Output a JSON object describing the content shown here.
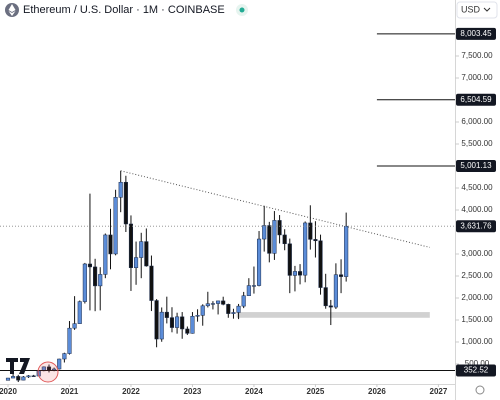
{
  "chart_data": {
    "type": "candlestick",
    "title": "Ethereum / U.S. Dollar · 1M · COINBASE",
    "currency": "USD",
    "x": [
      2020,
      2020.083,
      2020.167,
      2020.25,
      2020.333,
      2020.417,
      2020.5,
      2020.583,
      2020.667,
      2020.75,
      2020.833,
      2020.917,
      2021,
      2021.083,
      2021.167,
      2021.25,
      2021.333,
      2021.417,
      2021.5,
      2021.583,
      2021.667,
      2021.75,
      2021.833,
      2021.917,
      2022,
      2022.083,
      2022.167,
      2022.25,
      2022.333,
      2022.417,
      2022.5,
      2022.583,
      2022.667,
      2022.75,
      2022.833,
      2022.917,
      2023,
      2023.083,
      2023.167,
      2023.25,
      2023.333,
      2023.417,
      2023.5,
      2023.583,
      2023.667,
      2023.75,
      2023.833,
      2023.917,
      2024,
      2024.083,
      2024.167,
      2024.25,
      2024.333,
      2024.417,
      2024.5,
      2024.583,
      2024.667,
      2024.75,
      2024.833,
      2024.917,
      2025,
      2025.083,
      2025.167,
      2025.25,
      2025.333,
      2025.417,
      2025.5
    ],
    "open": [
      129,
      180,
      218,
      133,
      206,
      231,
      226,
      345,
      434,
      360,
      386,
      613,
      737,
      1314,
      1417,
      1918,
      2773,
      2706,
      2275,
      2536,
      3433,
      3001,
      4288,
      4631,
      3682,
      2688,
      2919,
      3282,
      2727,
      1942,
      1067,
      1678,
      1554,
      1328,
      1572,
      1296,
      1196,
      1585,
      1605,
      1822,
      1870,
      1874,
      1934,
      1856,
      1645,
      1671,
      1815,
      2052,
      2282,
      2283,
      3340,
      3647,
      3014,
      3763,
      3433,
      3232,
      2513,
      2603,
      2519,
      3706,
      3332,
      3300,
      2237,
      1822,
      1793,
      2529,
      2486
    ],
    "high": [
      184,
      288,
      253,
      227,
      248,
      252,
      350,
      445,
      488,
      418,
      620,
      756,
      1476,
      2042,
      1943,
      2797,
      4372,
      2891,
      2700,
      3466,
      4027,
      4460,
      4891,
      4778,
      3877,
      3283,
      3482,
      3580,
      2965,
      1975,
      1785,
      2030,
      1790,
      1665,
      1680,
      1352,
      1680,
      1743,
      1857,
      2141,
      1928,
      1935,
      2029,
      1870,
      1755,
      1865,
      2138,
      2450,
      2715,
      3522,
      4095,
      3730,
      3976,
      3885,
      3563,
      3350,
      2730,
      2770,
      3740,
      4107,
      3745,
      3440,
      2550,
      1956,
      2788,
      2880,
      3941
    ],
    "low": [
      127,
      180,
      90,
      130,
      182,
      215,
      224,
      335,
      308,
      335,
      374,
      534,
      714,
      1275,
      1416,
      1875,
      1718,
      1700,
      1718,
      2450,
      2652,
      2970,
      3950,
      3500,
      2160,
      2300,
      2450,
      2712,
      1703,
      880,
      1005,
      1422,
      1220,
      1190,
      1073,
      1160,
      1190,
      1462,
      1370,
      1785,
      1740,
      1626,
      1835,
      1550,
      1530,
      1520,
      1770,
      2050,
      2100,
      2265,
      3055,
      2810,
      2865,
      3240,
      3085,
      2110,
      2150,
      2310,
      2357,
      3100,
      2920,
      2076,
      1756,
      1385,
      1750,
      2110,
      2373
    ],
    "close": [
      180,
      218,
      133,
      206,
      231,
      226,
      345,
      434,
      360,
      386,
      613,
      737,
      1314,
      1417,
      1918,
      2773,
      2706,
      2275,
      2536,
      3433,
      3001,
      4288,
      4631,
      3682,
      2688,
      2919,
      3282,
      2727,
      1942,
      1067,
      1678,
      1554,
      1328,
      1572,
      1296,
      1196,
      1585,
      1605,
      1822,
      1870,
      1874,
      1934,
      1856,
      1645,
      1671,
      1815,
      2052,
      2282,
      2283,
      3340,
      3647,
      3014,
      3763,
      3433,
      3232,
      2513,
      2603,
      2519,
      3706,
      3332,
      3300,
      2237,
      1822,
      1793,
      2529,
      2486,
      3631.76
    ],
    "up_color": "#5b8cd8",
    "down_color": "#111111",
    "xlim": [
      2019.87,
      2027.27
    ],
    "xticks": [
      2020,
      2021,
      2022,
      2023,
      2024,
      2025,
      2026,
      2027
    ],
    "ylim": [
      45,
      8773
    ],
    "yticks": [
      {
        "value": 500,
        "label": "500.00"
      },
      {
        "value": 1000,
        "label": "1,000.00"
      },
      {
        "value": 1500,
        "label": "1,500.00"
      },
      {
        "value": 2000,
        "label": "2,000.00"
      },
      {
        "value": 2500,
        "label": "2,500.00"
      },
      {
        "value": 3000,
        "label": "3,000.00"
      },
      {
        "value": 4000,
        "label": "4,000.00"
      },
      {
        "value": 4500,
        "label": "4,500.00"
      },
      {
        "value": 5500,
        "label": "5,500.00"
      },
      {
        "value": 6000,
        "label": "6,000.00"
      },
      {
        "value": 7000,
        "label": "7,000.00"
      },
      {
        "value": 7500,
        "label": "7,500.00"
      }
    ],
    "price_lines": [
      {
        "value": 8003.45,
        "label": "8,003.45",
        "x_start": 2026
      },
      {
        "value": 6504.59,
        "label": "6,504.59",
        "x_start": 2026
      },
      {
        "value": 5001.13,
        "label": "5,001.13",
        "x_start": 2026
      },
      {
        "value": 3631.76,
        "label": "3,631.76",
        "style": "dotted"
      },
      {
        "value": 352.52,
        "label": "352.52"
      }
    ],
    "trendline": {
      "x": [
        2021.833,
        2026.86
      ],
      "y": [
        4891,
        3150
      ]
    },
    "zone": {
      "x": [
        2023.72,
        2026.86
      ],
      "y": [
        1550,
        1680
      ]
    }
  }
}
